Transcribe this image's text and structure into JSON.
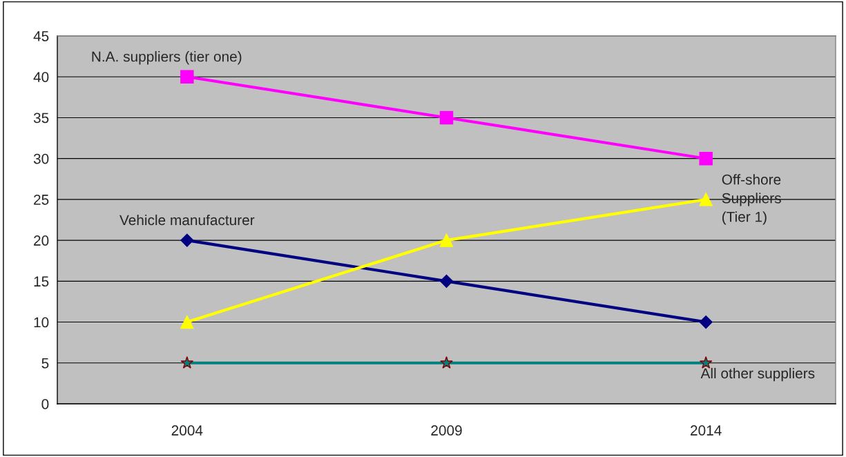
{
  "chart_data": {
    "type": "line",
    "categories": [
      "2004",
      "2009",
      "2014"
    ],
    "series": [
      {
        "name": "Vehicle manufacturer",
        "color": "#000080",
        "marker": "diamond",
        "values": [
          20,
          15,
          10
        ]
      },
      {
        "name": "N.A. suppliers (tier one)",
        "color": "#ff00ff",
        "marker": "square",
        "values": [
          40,
          35,
          30
        ]
      },
      {
        "name": "Off-shore\nSuppliers\n(Tier 1)",
        "color": "#ffff00",
        "marker": "triangle",
        "values": [
          10,
          20,
          25
        ]
      },
      {
        "name": "All other suppliers",
        "color": "#008080",
        "marker": "star",
        "values": [
          5,
          5,
          5
        ]
      }
    ],
    "ylim": [
      0,
      45
    ],
    "yticks": [
      0,
      5,
      10,
      15,
      20,
      25,
      30,
      35,
      40,
      45
    ],
    "grid": "y",
    "legend": false,
    "line_style": "solid"
  }
}
